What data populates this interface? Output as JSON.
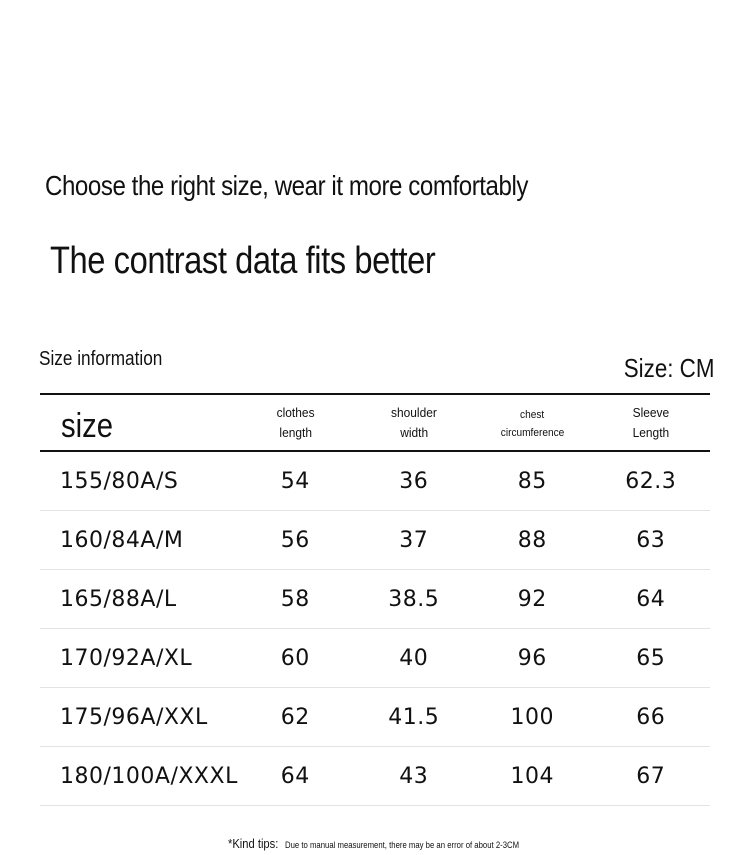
{
  "headline": "Choose the right size, wear it more comfortably",
  "subheadline": "The contrast data fits better",
  "size_info_label": "Size information",
  "unit_label": "Size: CM",
  "table": {
    "headers": {
      "size": "size",
      "clothes_length_1": "clothes",
      "clothes_length_2": "length",
      "shoulder_width_1": "shoulder",
      "shoulder_width_2": "width",
      "chest_1": "chest",
      "chest_2": "circumference",
      "sleeve_1": "Sleeve",
      "sleeve_2": "Length"
    },
    "rows": [
      {
        "size": "155/80A/S",
        "clothes_length": "54",
        "shoulder_width": "36",
        "chest": "85",
        "sleeve": "62.3"
      },
      {
        "size": "160/84A/M",
        "clothes_length": "56",
        "shoulder_width": "37",
        "chest": "88",
        "sleeve": "63"
      },
      {
        "size": "165/88A/L",
        "clothes_length": "58",
        "shoulder_width": "38.5",
        "chest": "92",
        "sleeve": "64"
      },
      {
        "size": "170/92A/XL",
        "clothes_length": "60",
        "shoulder_width": "40",
        "chest": "96",
        "sleeve": "65"
      },
      {
        "size": "175/96A/XXL",
        "clothes_length": "62",
        "shoulder_width": "41.5",
        "chest": "100",
        "sleeve": "66"
      },
      {
        "size": "180/100A/XXXL",
        "clothes_length": "64",
        "shoulder_width": "43",
        "chest": "104",
        "sleeve": "67"
      }
    ]
  },
  "footer": {
    "tip_label": "*Kind tips:",
    "tip_text": "Due to manual measurement, there may be an error of about 2-3CM"
  }
}
